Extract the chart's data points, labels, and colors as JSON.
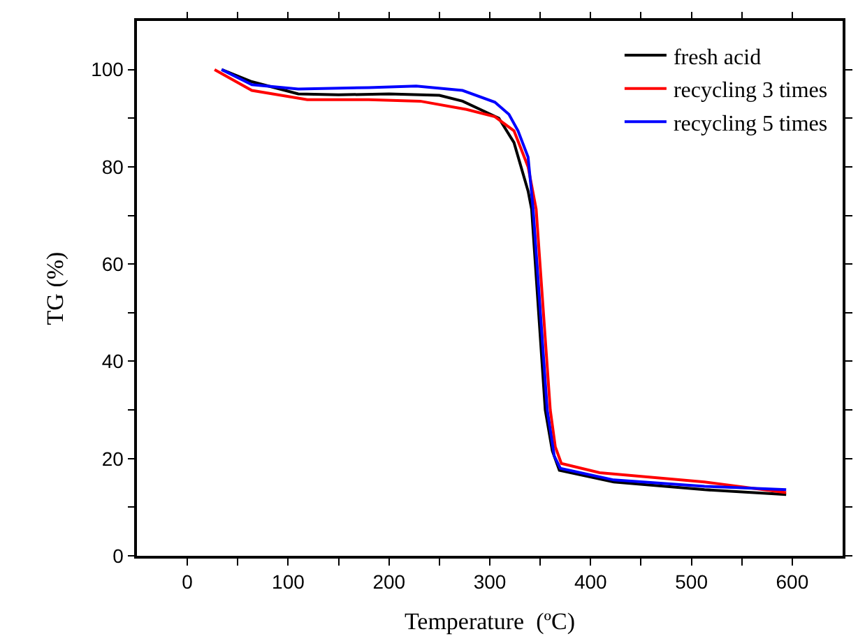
{
  "chart_data": {
    "type": "line",
    "xlabel": "Temperature  (ºC)",
    "ylabel": "TG (%)",
    "xlim": [
      -50,
      650
    ],
    "ylim": [
      0,
      110
    ],
    "xticks": [
      0,
      {
        "value": 50,
        "label": null
      },
      100,
      {
        "value": 150,
        "label": null
      },
      200,
      {
        "value": 250,
        "label": null
      },
      300,
      {
        "value": 350,
        "label": null
      },
      400,
      {
        "value": 450,
        "label": null
      },
      500,
      {
        "value": 550,
        "label": null
      },
      600
    ],
    "yticks": [
      0,
      {
        "value": 10,
        "label": null
      },
      20,
      {
        "value": 30,
        "label": null
      },
      40,
      {
        "value": 50,
        "label": null
      },
      60,
      {
        "value": 70,
        "label": null
      },
      80,
      {
        "value": 90,
        "label": null
      },
      100
    ],
    "legend": "top right",
    "marker": "none",
    "line_style": "solid",
    "series": [
      {
        "name": "fresh acid",
        "color": "#000000",
        "x": [
          34,
          64,
          110,
          150,
          200,
          250,
          273,
          309,
          324,
          338,
          341.5,
          355,
          362,
          369,
          423,
          513,
          594
        ],
        "values": [
          100,
          97.5,
          95,
          94.8,
          95,
          94.7,
          93.5,
          90,
          85,
          75,
          71.3,
          30,
          21.6,
          17.6,
          15.2,
          13.6,
          12.6
        ]
      },
      {
        "name": "recycling 3 times",
        "color": "#ff0000",
        "x": [
          27,
          64,
          119,
          180,
          231,
          277,
          305,
          324,
          338,
          346,
          360,
          365,
          371,
          409,
          513,
          594
        ],
        "values": [
          100,
          95.7,
          93.8,
          93.8,
          93.5,
          91.8,
          90.3,
          87.4,
          80,
          71.3,
          30,
          22.4,
          19,
          17.1,
          15.2,
          13
        ]
      },
      {
        "name": "recycling 5 times",
        "color": "#0000ff",
        "x": [
          34,
          64,
          110,
          180,
          227,
          273,
          305,
          319,
          328,
          338,
          343,
          357,
          364,
          370,
          423,
          513,
          594
        ],
        "values": [
          100,
          96.9,
          96,
          96.3,
          96.6,
          95.7,
          93.3,
          90.8,
          87.4,
          82,
          71.3,
          30,
          20.5,
          18,
          15.6,
          14.3,
          13.6
        ]
      }
    ]
  }
}
